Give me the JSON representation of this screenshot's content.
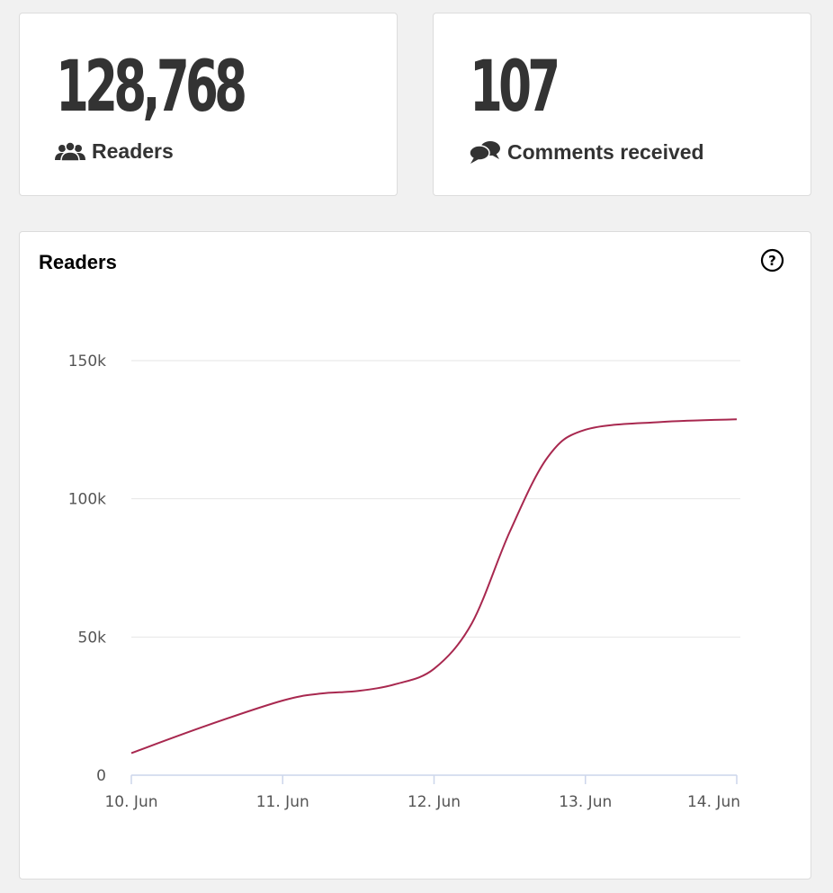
{
  "stats": {
    "readers": {
      "value": "128,768",
      "label": "Readers",
      "icon": "readers-icon"
    },
    "comments": {
      "value": "107",
      "label": "Comments received",
      "icon": "comments-icon"
    }
  },
  "chart_panel": {
    "title": "Readers",
    "help_icon": "help-icon"
  },
  "colors": {
    "line": "#a8284f",
    "grid": "#e6e6e6",
    "axis": "#ccd6eb",
    "text": "#333333",
    "background": "#f1f1f1"
  },
  "chart_data": {
    "type": "line",
    "title": "Readers",
    "xlabel": "",
    "ylabel": "",
    "x_ticks": [
      "10. Jun",
      "11. Jun",
      "12. Jun",
      "13. Jun",
      "14. Jun"
    ],
    "y_ticks": [
      "0",
      "50k",
      "100k",
      "150k"
    ],
    "y_tick_values": [
      0,
      50000,
      100000,
      150000
    ],
    "ylim": [
      0,
      150000
    ],
    "xlim": [
      "10. Jun",
      "14. Jun"
    ],
    "grid": true,
    "legend": "none",
    "series": [
      {
        "x": [
          "10. Jun 00:00",
          "10. Jun 12:00",
          "11. Jun 00:00",
          "11. Jun 06:00",
          "11. Jun 12:00",
          "11. Jun 18:00",
          "12. Jun 00:00",
          "12. Jun 06:00",
          "12. Jun 12:00",
          "12. Jun 18:00",
          "13. Jun 00:00",
          "13. Jun 12:00",
          "14. Jun 00:00"
        ],
        "values": [
          8000,
          18000,
          27000,
          29500,
          30500,
          33000,
          38500,
          55000,
          88000,
          115000,
          125000,
          127800,
          128768
        ]
      }
    ]
  }
}
